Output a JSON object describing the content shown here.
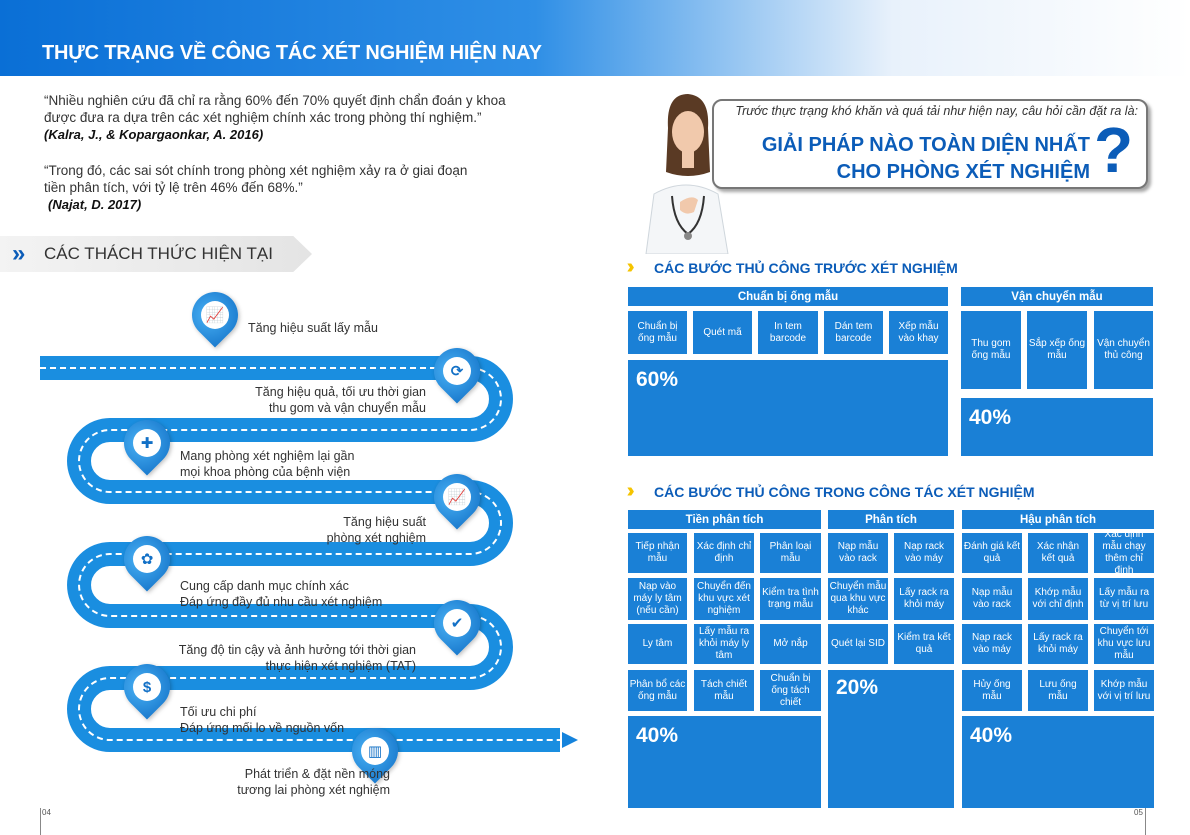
{
  "header": {
    "title": "THỰC TRẠNG VỀ CÔNG TÁC XÉT NGHIỆM HIỆN NAY"
  },
  "quotes": [
    {
      "line1": "“Nhiều nghiên cứu đã chỉ ra rằng 60% đến 70% quyết định chẩn đoán y khoa",
      "line2": "được đưa ra dựa trên các xét nghiệm chính xác trong phòng thí nghiệm.”",
      "cite": "(Kalra, J., & Kopargaonkar, A. 2016)"
    },
    {
      "line1": "“Trong đó, các sai sót chính trong phòng xét nghiệm xảy ra ở giai đoạn",
      "line2": "tiền phân tích, với tỷ lệ trên 46% đến 68%.”",
      "cite": "(Najat, D. 2017)"
    }
  ],
  "challenges": {
    "title": "CÁC THÁCH THỨC HIỆN TẠI",
    "items": [
      {
        "l1": "Tăng hiệu suất lấy mẫu",
        "l2": "",
        "icon": "chart-up-icon"
      },
      {
        "l1": "Tăng hiệu quả, tối ưu thời gian",
        "l2": "thu gom và vận chuyển mẫu",
        "icon": "refresh-icon"
      },
      {
        "l1": "Mang phòng xét nghiệm lại gần",
        "l2": "mọi khoa phòng của bệnh viện",
        "icon": "medical-cross-icon"
      },
      {
        "l1": "Tăng hiệu suất",
        "l2": "phòng xét nghiệm",
        "icon": "chart-up-icon"
      },
      {
        "l1": "Cung cấp danh mục chính xác",
        "l2": "Đáp ứng đầy đủ nhu cầu xét nghiệm",
        "icon": "brain-icon"
      },
      {
        "l1": "Tăng độ tin cậy và ảnh hưởng tới thời gian",
        "l2": "thực hiện xét nghiệm (TAT)",
        "icon": "shield-check-icon"
      },
      {
        "l1": "Tối ưu chi phí",
        "l2": "Đáp ứng mối lo về nguồn vốn",
        "icon": "coins-icon"
      },
      {
        "l1": "Phát triển & đặt nền móng",
        "l2": "tương lai phòng xét nghiệm",
        "icon": "building-icon"
      }
    ]
  },
  "question": {
    "intro": "Trước thực trạng khó khăn và quá tải như hiện nay, câu hỏi cần đặt ra là:",
    "line1": "GIẢI PHÁP NÀO TOÀN DIỆN NHẤT",
    "line2": "CHO PHÒNG XÉT NGHIỆM",
    "mark": "?"
  },
  "pre_steps": {
    "title": "CÁC BƯỚC THỦ CÔNG TRƯỚC XÉT NGHIỆM",
    "groups": [
      {
        "name": "Chuẩn bị ống mẫu",
        "cells": [
          "Chuẩn bị ống mẫu",
          "Quét mã",
          "In tem barcode",
          "Dán tem barcode",
          "Xếp mẫu vào khay"
        ],
        "percent": "60%"
      },
      {
        "name": "Vận chuyển mẫu",
        "cells": [
          "Thu gom ống mẫu",
          "Sắp xếp ống mẫu",
          "Vận chuyển thủ công"
        ],
        "percent": "40%"
      }
    ]
  },
  "test_steps": {
    "title": "CÁC BƯỚC THỦ CÔNG TRONG CÔNG TÁC XÉT NGHIỆM",
    "groups": [
      {
        "name": "Tiền phân tích",
        "cells": [
          "Tiếp nhận mẫu",
          "Xác định chỉ định",
          "Phân loại mẫu",
          "Nạp vào máy ly tâm (nếu cần)",
          "Chuyển đến khu vực xét nghiệm",
          "Kiểm tra tình trạng mẫu",
          "Ly tâm",
          "Lấy mẫu ra khỏi máy ly tâm",
          "Mở nắp",
          "Phân bổ các ống mẫu",
          "Tách chiết mẫu",
          "Chuẩn bị ống tách chiết"
        ],
        "percent": "40%"
      },
      {
        "name": "Phân tích",
        "cells": [
          "Nạp mẫu vào rack",
          "Nạp rack vào máy",
          "Chuyển mẫu qua khu vực khác",
          "Lấy rack ra khỏi máy",
          "Quét lại SID",
          "Kiểm tra kết quả"
        ],
        "percent": "20%"
      },
      {
        "name": "Hậu phân tích",
        "cells": [
          "Đánh giá kết quả",
          "Xác nhận kết quả",
          "Xác định mẫu chạy thêm chỉ định",
          "Nạp mẫu vào rack",
          "Khớp mẫu với chỉ định",
          "Lấy mẫu ra từ vị trí lưu",
          "Nạp rack vào máy",
          "Lấy rack ra khỏi máy",
          "Chuyển tới khu vực lưu mẫu",
          "Hủy ống mẫu",
          "Lưu ống mẫu",
          "Khớp mẫu với vị trí lưu"
        ],
        "percent": "40%"
      }
    ]
  },
  "pages": {
    "left": "04",
    "right": "05"
  }
}
